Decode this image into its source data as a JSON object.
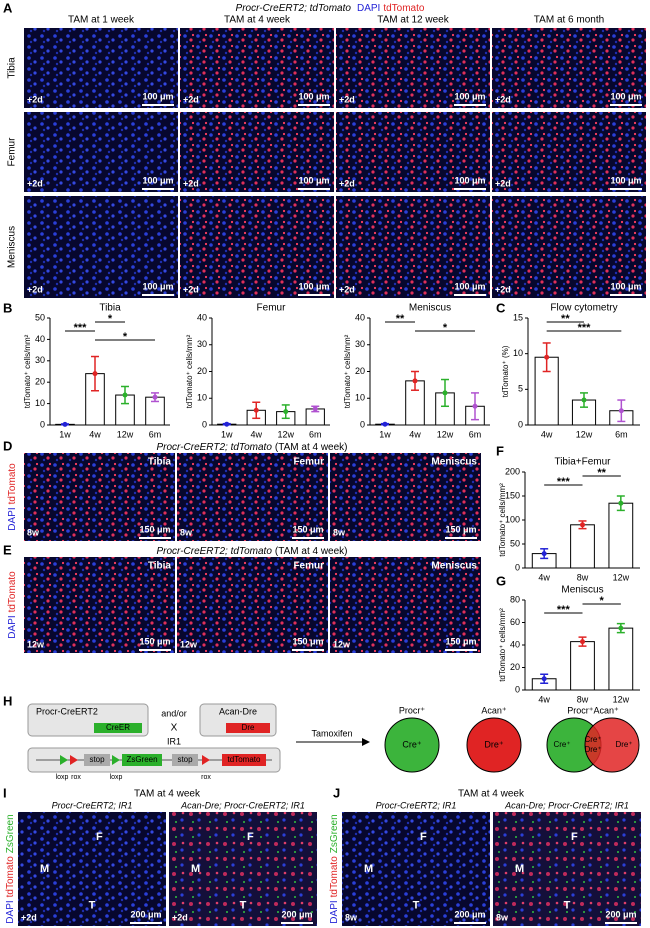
{
  "panel_labels": [
    "A",
    "B",
    "C",
    "D",
    "E",
    "F",
    "G",
    "H",
    "I",
    "J"
  ],
  "panel_a": {
    "title": "Procr-CreERT2; tdTomato",
    "stain_dapi": "DAPI",
    "stain_tdtomato": "tdTomato",
    "columns": [
      "TAM at 1 week",
      "TAM at 4 week",
      "TAM at 12 week",
      "TAM at 6 month"
    ],
    "rows": [
      "Tibia",
      "Femur",
      "Meniscus"
    ],
    "timepoint": "+2d",
    "scale_bar": "100 μm"
  },
  "chart_data": [
    {
      "type": "bar",
      "title": "Tibia",
      "ylabel": "tdTomato⁺ cells/mm²",
      "categories": [
        "1w",
        "4w",
        "12w",
        "6m"
      ],
      "values": [
        0.3,
        24,
        14,
        13
      ],
      "errors": [
        0.2,
        8,
        4,
        2
      ],
      "colors": [
        "#2323d6",
        "#e02424",
        "#2bb02b",
        "#b052d0"
      ],
      "ylim": [
        0,
        50
      ],
      "yticks": [
        0,
        10,
        20,
        30,
        40,
        50
      ],
      "annotations": [
        {
          "text": "*",
          "between": [
            "4w",
            "12w"
          ]
        },
        {
          "text": "***",
          "between": [
            "1w",
            "4w"
          ]
        },
        {
          "text": "*",
          "between": [
            "4w",
            "6m"
          ]
        }
      ]
    },
    {
      "type": "bar",
      "title": "Femur",
      "ylabel": "tdTomato⁺ cells/mm²",
      "categories": [
        "1w",
        "4w",
        "12w",
        "6m"
      ],
      "values": [
        0.3,
        5.5,
        5,
        6
      ],
      "errors": [
        0.2,
        3,
        2.5,
        1
      ],
      "colors": [
        "#2323d6",
        "#e02424",
        "#2bb02b",
        "#b052d0"
      ],
      "ylim": [
        0,
        40
      ],
      "yticks": [
        0,
        10,
        20,
        30,
        40
      ],
      "annotations": []
    },
    {
      "type": "bar",
      "title": "Meniscus",
      "ylabel": "tdTomato⁺ cells/mm²",
      "categories": [
        "1w",
        "4w",
        "12w",
        "6m"
      ],
      "values": [
        0.3,
        16.5,
        12,
        7
      ],
      "errors": [
        0.2,
        3.5,
        5,
        5
      ],
      "colors": [
        "#2323d6",
        "#e02424",
        "#2bb02b",
        "#b052d0"
      ],
      "ylim": [
        0,
        40
      ],
      "yticks": [
        0,
        10,
        20,
        30,
        40
      ],
      "annotations": [
        {
          "text": "**",
          "between": [
            "1w",
            "4w"
          ]
        },
        {
          "text": "*",
          "between": [
            "4w",
            "6m"
          ]
        }
      ]
    },
    {
      "type": "bar",
      "title": "Flow cytometry",
      "ylabel": "tdTomato⁺ (%)",
      "categories": [
        "4w",
        "12w",
        "6m"
      ],
      "values": [
        9.5,
        3.5,
        2
      ],
      "errors": [
        2,
        1,
        1.5
      ],
      "colors": [
        "#e02424",
        "#2bb02b",
        "#b052d0"
      ],
      "ylim": [
        0,
        15
      ],
      "yticks": [
        0,
        5,
        10,
        15
      ],
      "annotations": [
        {
          "text": "**",
          "between": [
            "4w",
            "12w"
          ]
        },
        {
          "text": "***",
          "between": [
            "4w",
            "6m"
          ]
        }
      ]
    },
    {
      "type": "bar",
      "title": "Tibia+Femur",
      "ylabel": "tdTomato⁺ cells/mm²",
      "categories": [
        "4w",
        "8w",
        "12w"
      ],
      "values": [
        30,
        90,
        135
      ],
      "errors": [
        10,
        8,
        15
      ],
      "colors": [
        "#2323d6",
        "#e02424",
        "#2bb02b"
      ],
      "ylim": [
        0,
        200
      ],
      "yticks": [
        0,
        50,
        100,
        150,
        200
      ],
      "annotations": [
        {
          "text": "**",
          "between": [
            "8w",
            "12w"
          ]
        },
        {
          "text": "***",
          "between": [
            "4w",
            "8w"
          ]
        }
      ]
    },
    {
      "type": "bar",
      "title": "Meniscus",
      "ylabel": "tdTomato⁺ cells/mm²",
      "categories": [
        "4w",
        "8w",
        "12w"
      ],
      "values": [
        10,
        43,
        55
      ],
      "errors": [
        4,
        4,
        4
      ],
      "colors": [
        "#2323d6",
        "#e02424",
        "#2bb02b"
      ],
      "ylim": [
        0,
        80
      ],
      "yticks": [
        0,
        20,
        40,
        60,
        80
      ],
      "annotations": [
        {
          "text": "*",
          "between": [
            "8w",
            "12w"
          ]
        },
        {
          "text": "***",
          "between": [
            "4w",
            "8w"
          ]
        }
      ]
    }
  ],
  "panel_d": {
    "title": "Procr-CreERT2; tdTomato",
    "title_suffix": "(TAM at 4 week)",
    "stain_dapi": "DAPI",
    "stain_tdtomato": "tdTomato",
    "tissues": [
      "Tibia",
      "Femur",
      "Meniscus"
    ],
    "timepoint": "8w",
    "scale_bar": "150 μm"
  },
  "panel_e": {
    "title": "Procr-CreERT2; tdTomato",
    "title_suffix": "(TAM at 4 week)",
    "stain_dapi": "DAPI",
    "stain_tdtomato": "tdTomato",
    "tissues": [
      "Tibia",
      "Femur",
      "Meniscus"
    ],
    "timepoint": "12w",
    "scale_bar": "150 μm"
  },
  "panel_h": {
    "construct1": "Procr-CreERT2",
    "gene1": "CreER",
    "andor": "and/or",
    "cross": "X",
    "construct2": "Acan-Dre",
    "gene2": "Dre",
    "reporter": "IR1",
    "loxp": "loxp",
    "rox": "rox",
    "stop": "stop",
    "zsgreen": "ZsGreen",
    "tdtomato": "tdTomato",
    "treatment": "Tamoxifen",
    "circle1": {
      "label": "Procr⁺",
      "inner": "Cre⁺"
    },
    "circle2": {
      "label": "Acan⁺",
      "inner": "Dre⁺"
    },
    "circle3": {
      "label": "Procr⁺Acan⁺",
      "left": "Cre⁺",
      "mid1": "Cre⁺",
      "mid2": "Dre⁺",
      "right": "Dre⁺"
    }
  },
  "panel_i": {
    "title": "TAM at 4 week",
    "left": "Procr-CreERT2; IR1",
    "right": "Acan-Dre; Procr-CreERT2; IR1",
    "stains": [
      "DAPI",
      "tdTomato",
      "ZsGreen"
    ],
    "regions": [
      "F",
      "M",
      "T"
    ],
    "timepoint": "+2d",
    "scale_bar": "200 μm"
  },
  "panel_j": {
    "title": "TAM at 4 week",
    "left": "Procr-CreERT2; IR1",
    "right": "Acan-Dre; Procr-CreERT2; IR1",
    "stains": [
      "DAPI",
      "tdTomato",
      "ZsGreen"
    ],
    "regions": [
      "F",
      "M",
      "T"
    ],
    "timepoint": "8w",
    "scale_bar": "200 μm"
  }
}
